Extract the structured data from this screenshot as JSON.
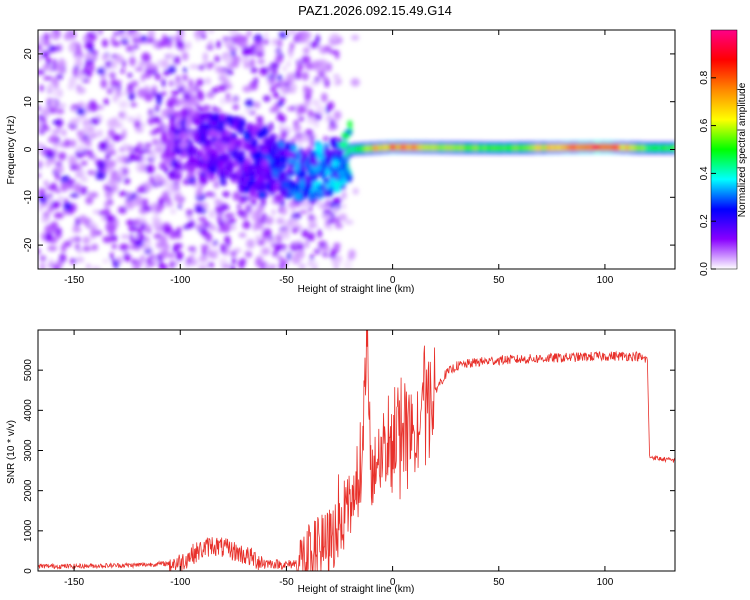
{
  "page": {
    "title": "PAZ1.2026.092.15.49.G14"
  },
  "chart_data": [
    {
      "type": "heatmap",
      "title": "PAZ1.2026.092.15.49.G14",
      "xlabel": "Height of straight line (km)",
      "ylabel": "Frequency (Hz)",
      "xlim": [
        -167,
        133
      ],
      "ylim": [
        -25,
        25
      ],
      "xticks": [
        -150,
        -100,
        -50,
        0,
        50,
        100
      ],
      "yticks": [
        -20,
        -10,
        0,
        10,
        20
      ],
      "grid": false,
      "colorbar": {
        "label": "Normalized spectral amplitude",
        "range": [
          0,
          1
        ],
        "ticks": [
          "0.0",
          "0.2",
          "0.4",
          "0.6",
          "0.8"
        ],
        "colors": [
          "#ffffff",
          "#8800ff",
          "#0000ff",
          "#00ffff",
          "#00ff00",
          "#ffff00",
          "#ff8800",
          "#ff0000",
          "#ff0088"
        ]
      },
      "ridge": {
        "description_values": [
          {
            "x": -100,
            "y": 1,
            "amp": 0.15
          },
          {
            "x": -80,
            "y": 0,
            "amp": 0.2
          },
          {
            "x": -60,
            "y": -3,
            "amp": 0.25
          },
          {
            "x": -40,
            "y": -5,
            "amp": 0.3
          },
          {
            "x": -25,
            "y": -3,
            "amp": 0.35
          },
          {
            "x": -20,
            "y": 0,
            "amp": 0.45
          },
          {
            "x": 0,
            "y": 0.5,
            "amp": 0.7
          },
          {
            "x": 50,
            "y": 0.3,
            "amp": 0.5
          },
          {
            "x": 100,
            "y": 0.5,
            "amp": 0.85
          },
          {
            "x": 120,
            "y": 0.3,
            "amp": 0.5
          }
        ]
      }
    },
    {
      "type": "line",
      "xlabel": "Height of straight line (km)",
      "ylabel": "SNR (10 * v/v)",
      "xlim": [
        -167,
        133
      ],
      "ylim": [
        0,
        6000
      ],
      "xticks": [
        -150,
        -100,
        -50,
        0,
        50,
        100
      ],
      "yticks": [
        0,
        1000,
        2000,
        3000,
        4000,
        5000
      ],
      "grid": false,
      "series": [
        {
          "name": "SNR",
          "color": "#e8302a",
          "x": [
            -167,
            -150,
            -120,
            -100,
            -95,
            -85,
            -75,
            -60,
            -50,
            -40,
            -30,
            -20,
            -15,
            -12,
            -10,
            -5,
            0,
            10,
            20,
            25,
            30,
            40,
            50,
            75,
            100,
            115,
            120,
            121,
            125,
            133
          ],
          "y": [
            120,
            120,
            150,
            200,
            400,
            650,
            500,
            200,
            150,
            250,
            700,
            1600,
            2400,
            5700,
            2000,
            3000,
            3200,
            3500,
            4500,
            4900,
            5100,
            5200,
            5250,
            5300,
            5350,
            5350,
            5250,
            2850,
            2800,
            2750
          ]
        }
      ]
    }
  ]
}
